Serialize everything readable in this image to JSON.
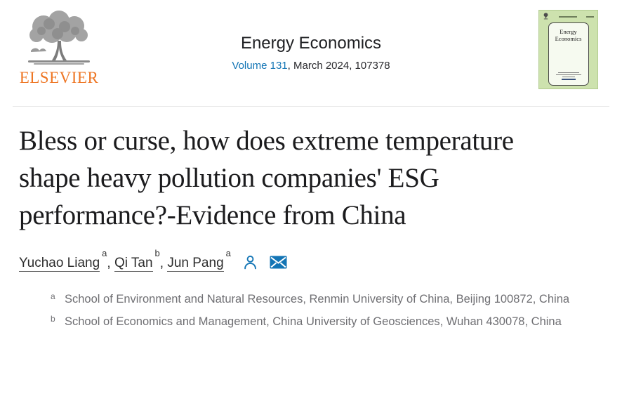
{
  "header": {
    "elsevier_logo_text": "ELSEVIER",
    "journal_title": "Energy Economics",
    "volume_link_text": "Volume 131",
    "issue_rest_text": ", March 2024, 107378",
    "cover_title": "Energy Economics"
  },
  "article": {
    "title": "Bless or curse, how does extreme temperature shape heavy pollution companies' ESG performance?-Evidence from China",
    "authors": [
      {
        "name": "Yuchao Liang",
        "sup": "a"
      },
      {
        "name": "Qi Tan",
        "sup": "b"
      },
      {
        "name": "Jun Pang",
        "sup": "a"
      }
    ],
    "author_separator": ", ",
    "icons": [
      {
        "name": "author-info-person-icon"
      },
      {
        "name": "corresponding-author-email-icon"
      }
    ],
    "affiliations": [
      {
        "sup": "a",
        "text": "School of Environment and Natural Resources, Renmin University of China, Beijing 100872, China"
      },
      {
        "sup": "b",
        "text": "School of Economics and Management, China University of Geosciences, Wuhan 430078, China"
      }
    ]
  },
  "colors": {
    "elsevier_orange": "#EE7624",
    "link_blue": "#1375B5",
    "title_black": "#1B1B1D",
    "affiliation_gray": "#6F6F73",
    "cover_green": "#CDE2AE"
  }
}
